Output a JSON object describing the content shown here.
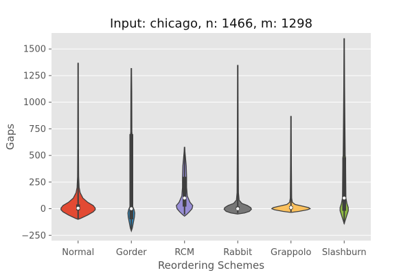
{
  "chart_data": {
    "type": "violin",
    "title": "Input: chicago, n: 1466, m: 1298",
    "xlabel": "Reordering Schemes",
    "ylabel": "Gaps",
    "ylim": [
      -300,
      1650
    ],
    "yticks": [
      -250,
      0,
      250,
      500,
      750,
      1000,
      1250,
      1500
    ],
    "ytick_labels": [
      "−250",
      "0",
      "250",
      "500",
      "750",
      "1000",
      "1250",
      "1500"
    ],
    "grid": true,
    "categories": [
      "Normal",
      "Gorder",
      "RCM",
      "Rabbit",
      "Grappolo",
      "Slashburn"
    ],
    "series": [
      {
        "color": "#e24a33",
        "max": 1370,
        "min": -95,
        "q1": -15,
        "median": 5,
        "q3": 40,
        "profile": [
          [
            -100,
            0
          ],
          [
            -90,
            4
          ],
          [
            -60,
            14
          ],
          [
            -30,
            22
          ],
          [
            -10,
            25
          ],
          [
            5,
            25
          ],
          [
            30,
            22
          ],
          [
            60,
            14
          ],
          [
            100,
            7
          ],
          [
            150,
            3
          ],
          [
            200,
            1.5
          ],
          [
            300,
            0.8
          ],
          [
            600,
            0.5
          ],
          [
            1370,
            0
          ]
        ]
      },
      {
        "color": "#348abd",
        "max": 1320,
        "min": -200,
        "q1": -100,
        "median": 0,
        "q3": 700,
        "profile": [
          [
            -210,
            0
          ],
          [
            -180,
            1.5
          ],
          [
            -130,
            3
          ],
          [
            -80,
            4.5
          ],
          [
            -40,
            5
          ],
          [
            -10,
            4
          ],
          [
            20,
            2
          ],
          [
            100,
            1.5
          ],
          [
            700,
            1.2
          ],
          [
            720,
            0.8
          ],
          [
            1100,
            0.6
          ],
          [
            1320,
            0
          ]
        ]
      },
      {
        "color": "#988ed5",
        "max": 580,
        "min": -55,
        "q1": 20,
        "median": 100,
        "q3": 300,
        "profile": [
          [
            -70,
            0
          ],
          [
            -55,
            3
          ],
          [
            -30,
            7
          ],
          [
            0,
            11
          ],
          [
            30,
            12
          ],
          [
            60,
            8
          ],
          [
            120,
            4
          ],
          [
            200,
            3
          ],
          [
            300,
            3
          ],
          [
            400,
            2.5
          ],
          [
            470,
            1.5
          ],
          [
            580,
            0
          ]
        ]
      },
      {
        "color": "#777777",
        "max": 1350,
        "min": -40,
        "q1": -10,
        "median": 0,
        "q3": 20,
        "profile": [
          [
            -50,
            0
          ],
          [
            -40,
            10
          ],
          [
            -25,
            17
          ],
          [
            -5,
            20
          ],
          [
            10,
            19
          ],
          [
            30,
            14
          ],
          [
            50,
            6
          ],
          [
            80,
            2
          ],
          [
            150,
            1
          ],
          [
            1350,
            0
          ]
        ]
      },
      {
        "color": "#fbc15e",
        "max": 870,
        "min": -30,
        "q1": -5,
        "median": 10,
        "q3": 25,
        "profile": [
          [
            -35,
            0
          ],
          [
            -25,
            12
          ],
          [
            -10,
            24
          ],
          [
            0,
            28
          ],
          [
            10,
            26
          ],
          [
            25,
            16
          ],
          [
            40,
            6
          ],
          [
            60,
            2
          ],
          [
            100,
            1
          ],
          [
            870,
            0
          ]
        ]
      },
      {
        "color": "#8eba42",
        "max": 1600,
        "min": -140,
        "q1": -20,
        "median": 100,
        "q3": 480,
        "profile": [
          [
            -140,
            0
          ],
          [
            -100,
            2
          ],
          [
            -60,
            4
          ],
          [
            -20,
            6
          ],
          [
            10,
            6
          ],
          [
            50,
            4
          ],
          [
            100,
            2.5
          ],
          [
            480,
            2
          ],
          [
            500,
            1.5
          ],
          [
            830,
            1
          ],
          [
            1600,
            0
          ]
        ]
      }
    ]
  }
}
